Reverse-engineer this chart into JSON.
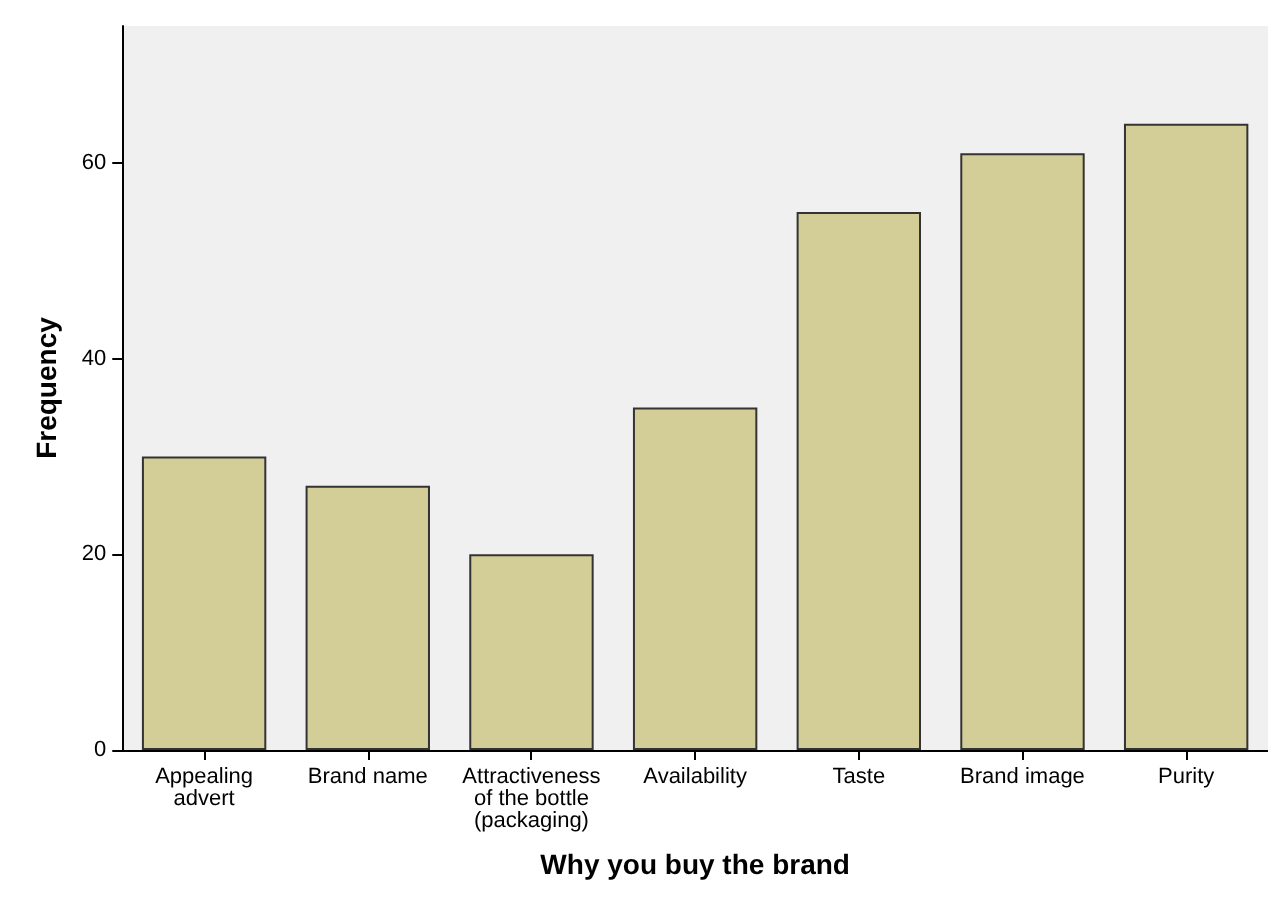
{
  "chart_data": {
    "type": "bar",
    "xlabel": "Why you buy the brand",
    "ylabel": "Frequency",
    "categories": [
      "Appealing\nadvert",
      "Brand name",
      "Attractiveness\nof the bottle\n(packaging)",
      "Availability",
      "Taste",
      "Brand image",
      "Purity"
    ],
    "values": [
      30,
      27,
      20,
      35,
      55,
      61,
      64
    ],
    "color": "#d3ce97",
    "ylim": [
      0,
      74
    ],
    "yticks": [
      0,
      20,
      40,
      60
    ],
    "grid": false
  }
}
